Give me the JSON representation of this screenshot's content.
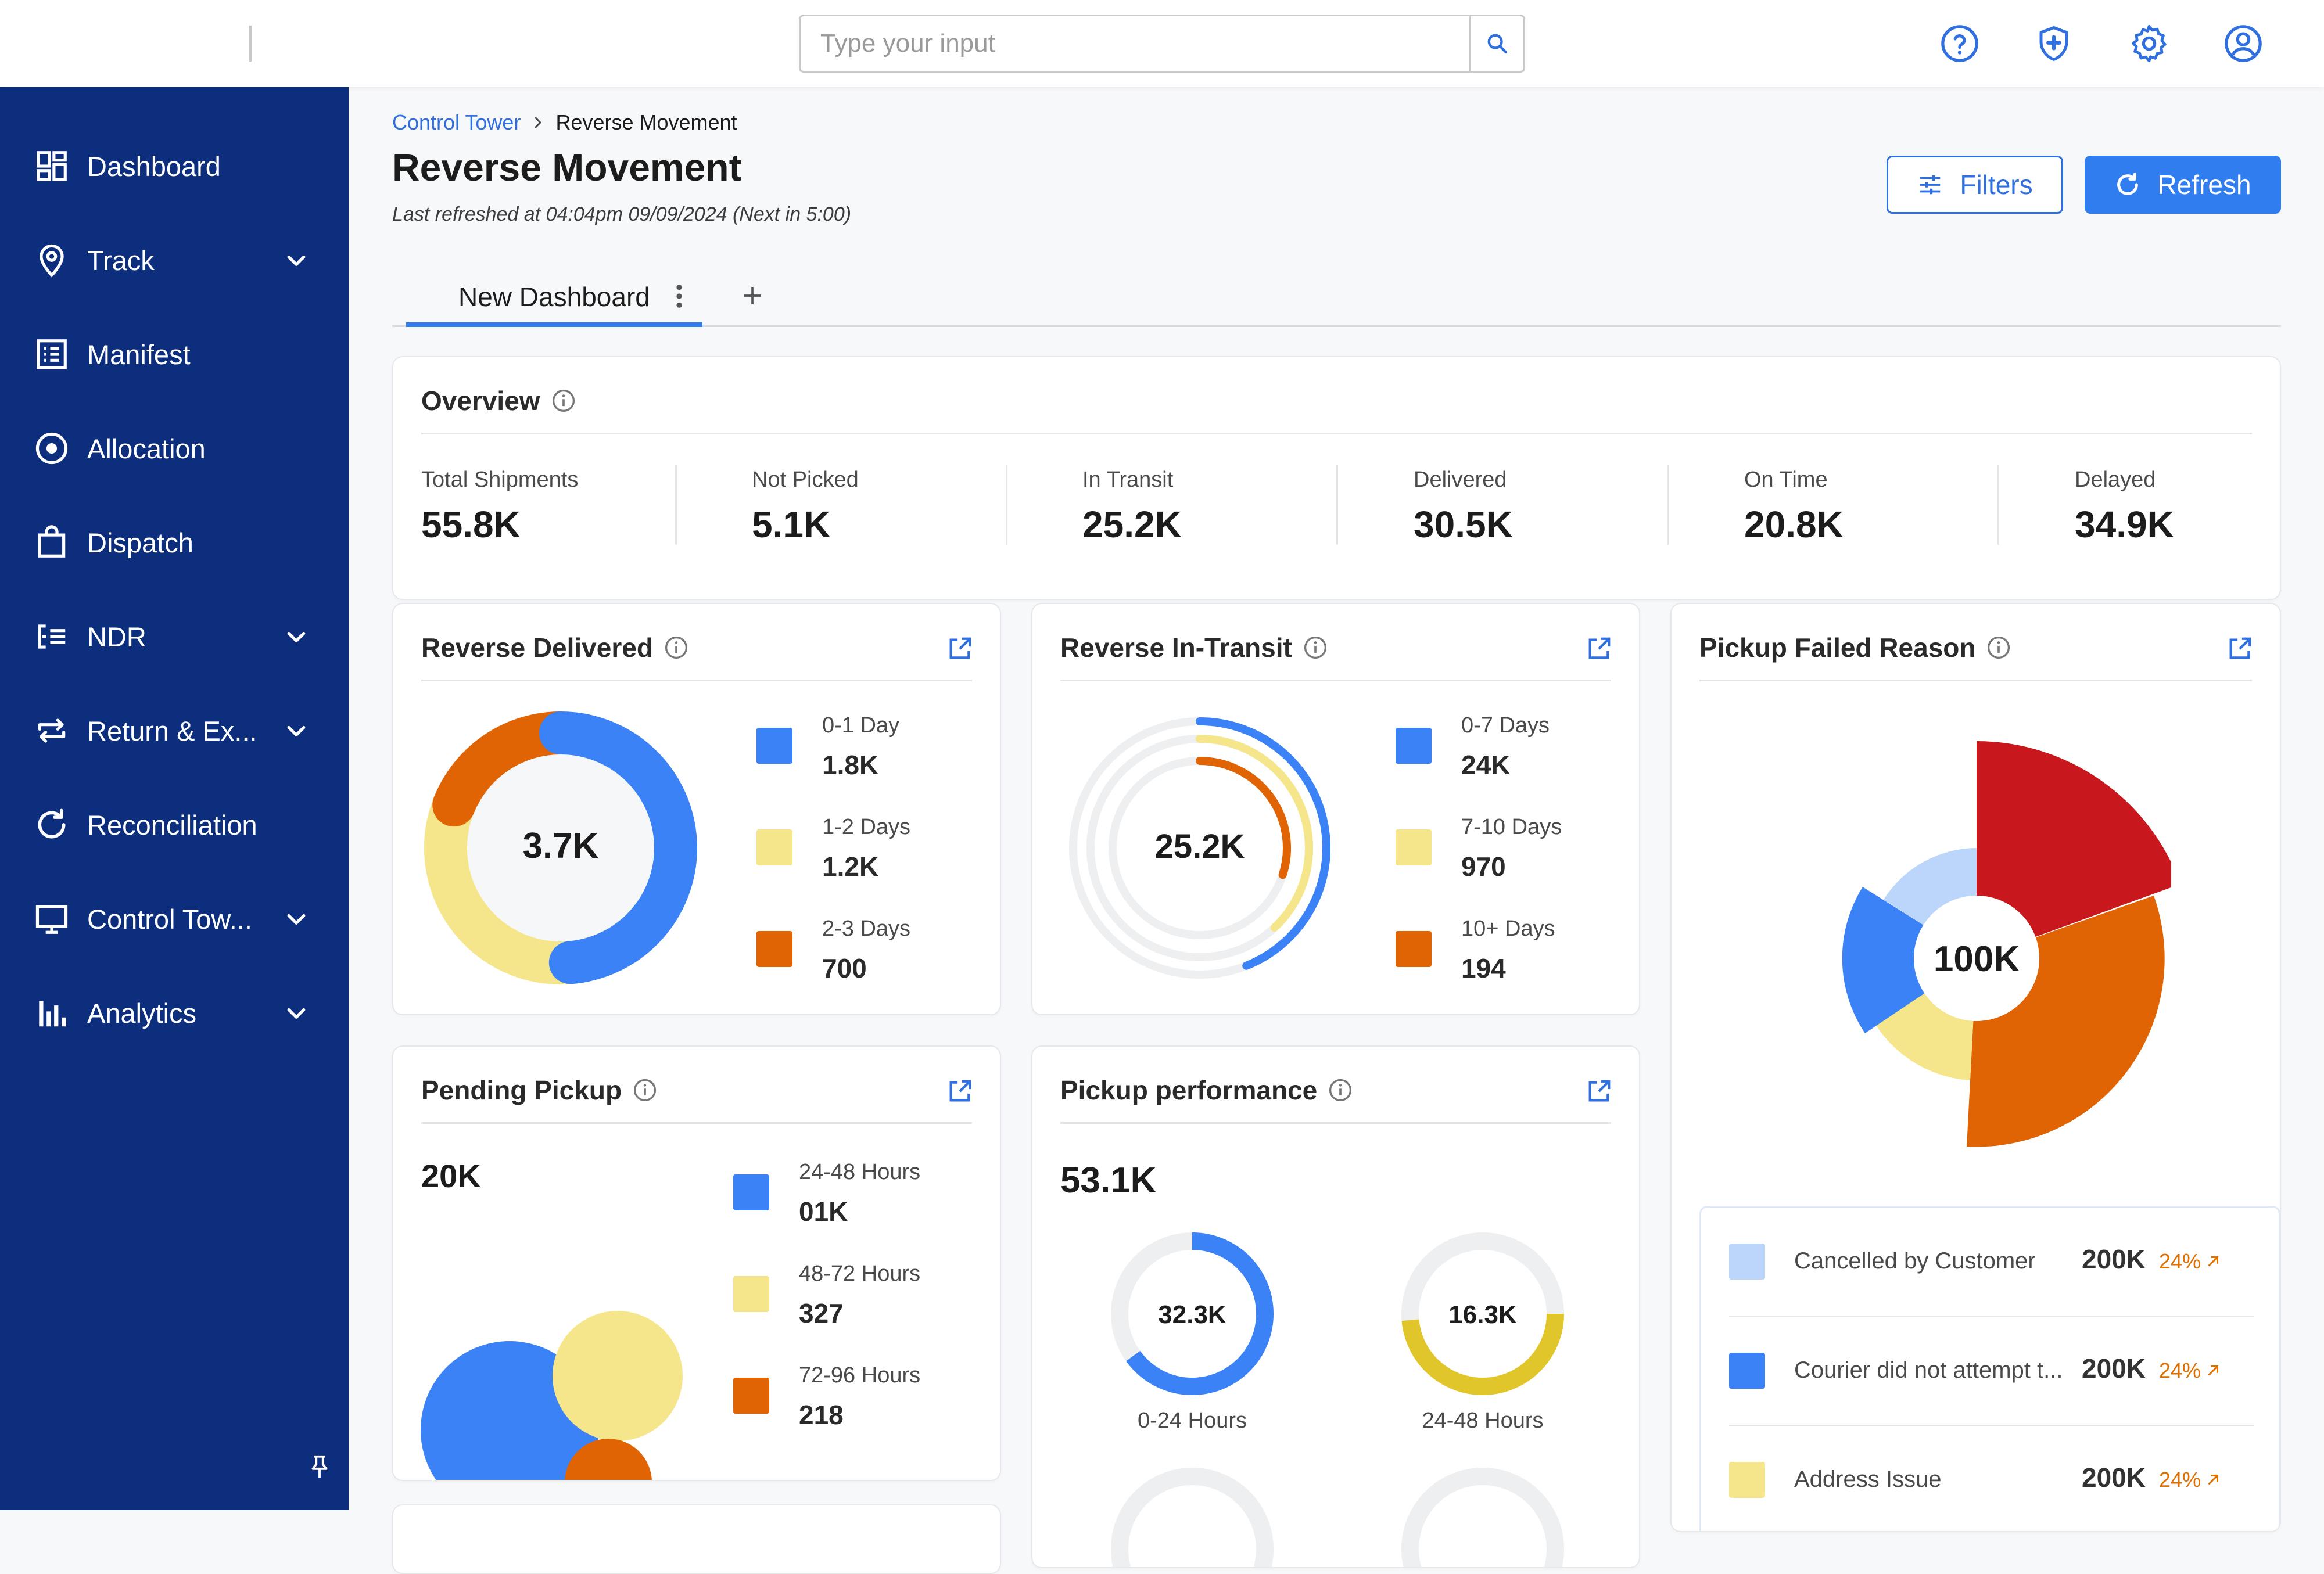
{
  "search": {
    "placeholder": "Type your input"
  },
  "top_icons": [
    "help-icon",
    "shield-icon",
    "gear-icon",
    "user-icon"
  ],
  "sidebar": {
    "items": [
      {
        "label": "Dashboard",
        "icon": "dashboard-icon",
        "has_chevron": false
      },
      {
        "label": "Track",
        "icon": "location-pin-icon",
        "has_chevron": true
      },
      {
        "label": "Manifest",
        "icon": "list-icon",
        "has_chevron": false
      },
      {
        "label": "Allocation",
        "icon": "target-icon",
        "has_chevron": false
      },
      {
        "label": "Dispatch",
        "icon": "bag-icon",
        "has_chevron": false
      },
      {
        "label": "NDR",
        "icon": "ndr-list-icon",
        "has_chevron": true
      },
      {
        "label": "Return & Ex...",
        "icon": "swap-icon",
        "has_chevron": true
      },
      {
        "label": "Reconciliation",
        "icon": "reload-icon",
        "has_chevron": false
      },
      {
        "label": "Control Tow...",
        "icon": "monitor-icon",
        "has_chevron": true
      },
      {
        "label": "Analytics",
        "icon": "bar-chart-icon",
        "has_chevron": true
      }
    ]
  },
  "breadcrumb": {
    "parent": "Control Tower",
    "current": "Reverse Movement"
  },
  "page": {
    "title": "Reverse Movement",
    "refreshed": "Last refreshed at 04:04pm 09/09/2024 (Next in 5:00)"
  },
  "buttons": {
    "filters": "Filters",
    "refresh": "Refresh"
  },
  "tabs": [
    {
      "label": "New Dashboard",
      "active": true
    }
  ],
  "overview": {
    "title": "Overview",
    "stats": [
      {
        "label": "Total Shipments",
        "value": "55.8K"
      },
      {
        "label": "Not Picked",
        "value": "5.1K"
      },
      {
        "label": "In Transit",
        "value": "25.2K"
      },
      {
        "label": "Delivered",
        "value": "30.5K"
      },
      {
        "label": "On Time",
        "value": "20.8K"
      },
      {
        "label": "Delayed",
        "value": "34.9K"
      }
    ]
  },
  "colors": {
    "blue": "#3b82f6",
    "yellow": "#f5e68c",
    "orange": "#e06404",
    "red": "#c8171d",
    "light_blue": "#bcd5fb",
    "dark_yellow": "#e0c62a",
    "sidebar": "#0c2e7c",
    "accent": "#2f7dee"
  },
  "reverse_delivered": {
    "title": "Reverse Delivered",
    "center": "3.7K",
    "legend": [
      {
        "label": "0-1 Day",
        "value": "1.8K"
      },
      {
        "label": "1-2 Days",
        "value": "1.2K"
      },
      {
        "label": "2-3 Days",
        "value": "700"
      }
    ]
  },
  "reverse_in_transit": {
    "title": "Reverse In-Transit",
    "center": "25.2K",
    "legend": [
      {
        "label": "0-7 Days",
        "value": "24K"
      },
      {
        "label": "7-10 Days",
        "value": "970"
      },
      {
        "label": "10+ Days",
        "value": "194"
      }
    ]
  },
  "pickup_failed": {
    "title": "Pickup Failed Reason",
    "center": "100K",
    "reasons": [
      {
        "label": "Cancelled by Customer",
        "value": "200K",
        "pct": "24%"
      },
      {
        "label": "Courier did not attempt t...",
        "value": "200K",
        "pct": "24%"
      },
      {
        "label": "Address Issue",
        "value": "200K",
        "pct": "24%"
      }
    ]
  },
  "pending_pickup": {
    "title": "Pending Pickup",
    "total": "20K",
    "legend": [
      {
        "label": "24-48 Hours",
        "value": "01K"
      },
      {
        "label": "48-72 Hours",
        "value": "327"
      },
      {
        "label": "72-96 Hours",
        "value": "218"
      }
    ]
  },
  "pickup_performance": {
    "title": "Pickup performance",
    "total": "53.1K",
    "rings": [
      {
        "value": "32.3K",
        "label": "0-24 Hours"
      },
      {
        "value": "16.3K",
        "label": "24-48 Hours"
      }
    ]
  },
  "chart_data": [
    {
      "type": "pie",
      "title": "Reverse Delivered",
      "categories": [
        "0-1 Day",
        "1-2 Days",
        "2-3 Days"
      ],
      "values": [
        1800,
        1200,
        700
      ]
    },
    {
      "type": "pie",
      "title": "Reverse In-Transit",
      "categories": [
        "0-7 Days",
        "7-10 Days",
        "10+ Days"
      ],
      "values": [
        24000,
        970,
        194
      ]
    },
    {
      "type": "pie",
      "title": "Pending Pickup",
      "categories": [
        "24-48 Hours",
        "48-72 Hours",
        "72-96 Hours"
      ],
      "values": [
        1000,
        327,
        218
      ]
    },
    {
      "type": "pie",
      "title": "Pickup performance",
      "categories": [
        "0-24 Hours",
        "24-48 Hours"
      ],
      "values": [
        32300,
        16300
      ]
    }
  ]
}
